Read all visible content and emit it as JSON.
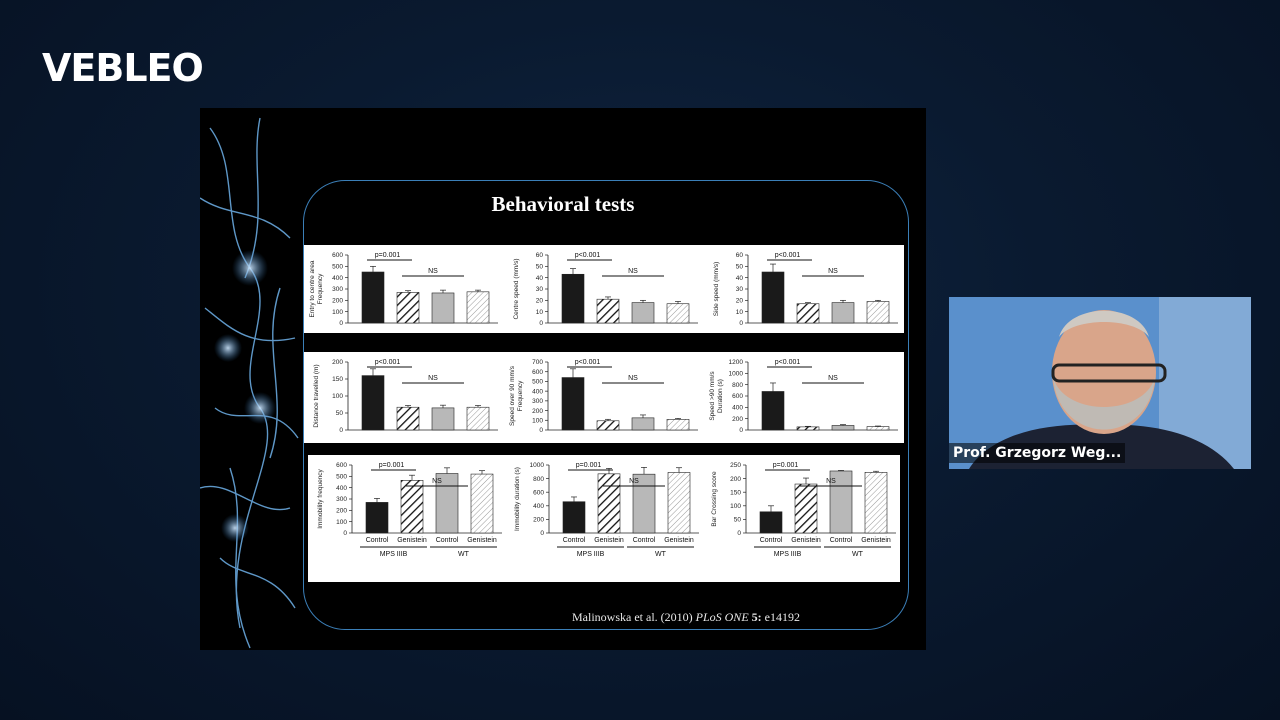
{
  "brand": {
    "logo_text": "VEBLEO"
  },
  "slide": {
    "title": "Behavioral tests",
    "citation": {
      "authors": "Malinowska et al. (2010)",
      "journal": "PLoS ONE",
      "volume": "5:",
      "article": "e14192"
    }
  },
  "webcam": {
    "name": "Prof. Grzegorz Weg..."
  },
  "colors": {
    "control_bar": "#1a1a1a",
    "wt_bar": "#b8b8b8",
    "frame": "#3b7fb8"
  },
  "group_labels": {
    "control": "Control",
    "genistein": "Genistein",
    "mps": "MPS IIIB",
    "wt": "WT"
  },
  "chart_data": [
    {
      "type": "bar",
      "ylabel": [
        "Entry to centre area",
        "Frequency"
      ],
      "yticks": [
        0,
        100,
        200,
        300,
        400,
        500,
        600
      ],
      "ylim": [
        0,
        600
      ],
      "categories": [
        "MPS IIIB Control",
        "MPS IIIB Genistein",
        "WT Control",
        "WT Genistein"
      ],
      "values": [
        450,
        270,
        265,
        275
      ],
      "errors": [
        50,
        15,
        25,
        15
      ],
      "annotations": [
        "p=0.001",
        "NS"
      ]
    },
    {
      "type": "bar",
      "ylabel": [
        "Centre speed (mm/s)"
      ],
      "yticks": [
        0,
        10,
        20,
        30,
        40,
        50,
        60
      ],
      "ylim": [
        0,
        60
      ],
      "categories": [
        "MPS IIIB Control",
        "MPS IIIB Genistein",
        "WT Control",
        "WT Genistein"
      ],
      "values": [
        43,
        21,
        18,
        17
      ],
      "errors": [
        5,
        2,
        2,
        2
      ],
      "annotations": [
        "p<0.001",
        "NS"
      ]
    },
    {
      "type": "bar",
      "ylabel": [
        "Side speed (mm/s)"
      ],
      "yticks": [
        0,
        10,
        20,
        30,
        40,
        50,
        60
      ],
      "ylim": [
        0,
        60
      ],
      "categories": [
        "MPS IIIB Control",
        "MPS IIIB Genistein",
        "WT Control",
        "WT Genistein"
      ],
      "values": [
        45,
        17,
        18,
        19
      ],
      "errors": [
        7,
        1,
        2,
        1
      ],
      "annotations": [
        "p<0.001",
        "NS"
      ]
    },
    {
      "type": "bar",
      "ylabel": [
        "Distance travelled (m)"
      ],
      "yticks": [
        0,
        50,
        100,
        150,
        200
      ],
      "ylim": [
        0,
        200
      ],
      "categories": [
        "MPS IIIB Control",
        "MPS IIIB Genistein",
        "WT Control",
        "WT Genistein"
      ],
      "values": [
        160,
        67,
        65,
        67
      ],
      "errors": [
        20,
        5,
        8,
        5
      ],
      "annotations": [
        "p<0.001",
        "NS"
      ]
    },
    {
      "type": "bar",
      "ylabel": [
        "Speed over 90 mm/s",
        "Frequency"
      ],
      "yticks": [
        0,
        100,
        200,
        300,
        400,
        500,
        600,
        700
      ],
      "ylim": [
        0,
        700
      ],
      "categories": [
        "MPS IIIB Control",
        "MPS IIIB Genistein",
        "WT Control",
        "WT Genistein"
      ],
      "values": [
        540,
        95,
        125,
        110
      ],
      "errors": [
        90,
        15,
        30,
        10
      ],
      "annotations": [
        "p<0.001",
        "NS"
      ]
    },
    {
      "type": "bar",
      "ylabel": [
        "Speed >90 mm/s",
        "Duration (s)"
      ],
      "yticks": [
        0,
        200,
        400,
        600,
        800,
        1000,
        1200
      ],
      "ylim": [
        0,
        1200
      ],
      "categories": [
        "MPS IIIB Control",
        "MPS IIIB Genistein",
        "WT Control",
        "WT Genistein"
      ],
      "values": [
        680,
        55,
        80,
        60
      ],
      "errors": [
        150,
        10,
        15,
        10
      ],
      "annotations": [
        "p<0.001",
        "NS"
      ]
    },
    {
      "type": "bar",
      "ylabel": [
        "Immobility frequency"
      ],
      "yticks": [
        0,
        100,
        200,
        300,
        400,
        500,
        600
      ],
      "ylim": [
        0,
        600
      ],
      "categories": [
        "MPS IIIB Control",
        "MPS IIIB Genistein",
        "WT Control",
        "WT Genistein"
      ],
      "values": [
        270,
        465,
        525,
        520
      ],
      "errors": [
        35,
        45,
        50,
        30
      ],
      "annotations": [
        "p=0.001",
        "NS"
      ]
    },
    {
      "type": "bar",
      "ylabel": [
        "Immobility duration (s)"
      ],
      "yticks": [
        0,
        200,
        400,
        600,
        800,
        1000
      ],
      "ylim": [
        0,
        1000
      ],
      "categories": [
        "MPS IIIB Control",
        "MPS IIIB Genistein",
        "WT Control",
        "WT Genistein"
      ],
      "values": [
        460,
        870,
        865,
        890
      ],
      "errors": [
        70,
        80,
        100,
        70
      ],
      "annotations": [
        "p=0.001",
        "NS"
      ]
    },
    {
      "type": "bar",
      "ylabel": [
        "Bar Crossing score"
      ],
      "yticks": [
        0,
        50,
        100,
        150,
        200,
        250
      ],
      "ylim": [
        0,
        250
      ],
      "categories": [
        "MPS IIIB Control",
        "MPS IIIB Genistein",
        "WT Control",
        "WT Genistein"
      ],
      "values": [
        78,
        180,
        228,
        223
      ],
      "errors": [
        22,
        22,
        2,
        4
      ],
      "annotations": [
        "p=0.001",
        "NS"
      ]
    }
  ]
}
